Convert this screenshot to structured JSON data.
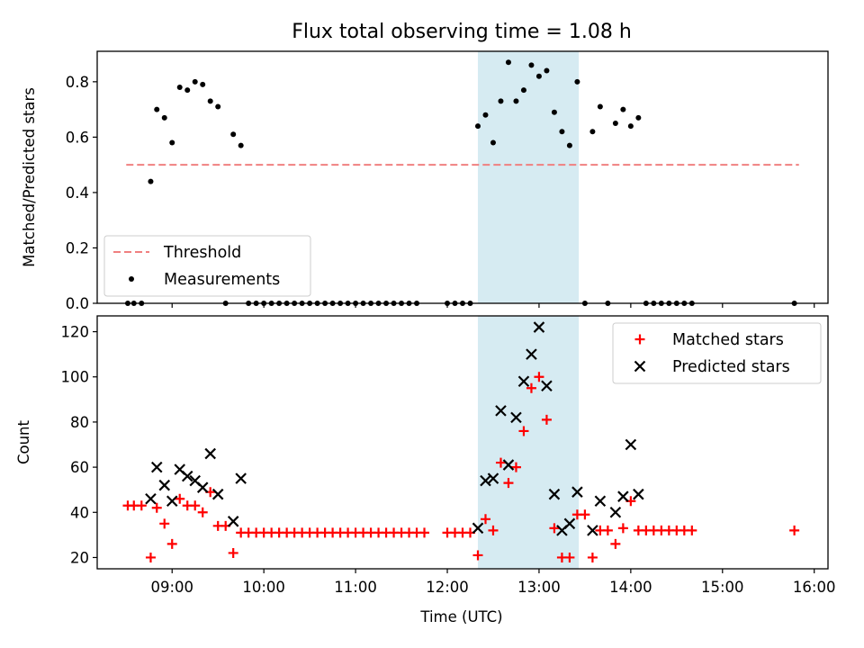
{
  "chart_data": {
    "type": "scatter",
    "title": "Flux total observing time = 1.08 h",
    "xlabel": "Time (UTC)",
    "x_ticks": [
      "09:00",
      "10:00",
      "11:00",
      "12:00",
      "13:00",
      "14:00",
      "15:00",
      "16:00"
    ],
    "xlim": [
      "08:11",
      "16:09"
    ],
    "shaded_span": {
      "start": "12:20",
      "end": "13:26",
      "color": "#add8e6"
    },
    "colors": {
      "threshold": "#f08080",
      "measurements": "#000000",
      "matched": "#ff0000",
      "predicted": "#000000",
      "span": "#add8e6"
    },
    "panels": [
      {
        "ylabel": "Matched/Predicted stars",
        "ylim": [
          0,
          0.91
        ],
        "y_ticks": [
          "0.0",
          "0.2",
          "0.4",
          "0.6",
          "0.8"
        ],
        "legend": {
          "position": "lower left",
          "entries": [
            "Threshold",
            "Measurements"
          ]
        },
        "series": [
          {
            "name": "Threshold",
            "kind": "dashed-line",
            "x": [
              "08:30",
              "15:50"
            ],
            "y": [
              0.5,
              0.5
            ]
          },
          {
            "name": "Measurements",
            "kind": "dot",
            "points": [
              [
                "08:31",
                0
              ],
              [
                "08:35",
                0
              ],
              [
                "08:40",
                0
              ],
              [
                "08:46",
                0.44
              ],
              [
                "08:50",
                0.7
              ],
              [
                "08:55",
                0.67
              ],
              [
                "09:00",
                0.58
              ],
              [
                "09:05",
                0.78
              ],
              [
                "09:10",
                0.77
              ],
              [
                "09:15",
                0.8
              ],
              [
                "09:20",
                0.79
              ],
              [
                "09:25",
                0.73
              ],
              [
                "09:30",
                0.71
              ],
              [
                "09:35",
                0
              ],
              [
                "09:40",
                0.61
              ],
              [
                "09:45",
                0.57
              ],
              [
                "09:50",
                0
              ],
              [
                "09:55",
                0
              ],
              [
                "10:00",
                0
              ],
              [
                "10:05",
                0
              ],
              [
                "10:10",
                0
              ],
              [
                "10:15",
                0
              ],
              [
                "10:20",
                0
              ],
              [
                "10:25",
                0
              ],
              [
                "10:30",
                0
              ],
              [
                "10:35",
                0
              ],
              [
                "10:40",
                0
              ],
              [
                "10:45",
                0
              ],
              [
                "10:50",
                0
              ],
              [
                "10:55",
                0
              ],
              [
                "11:00",
                0
              ],
              [
                "11:05",
                0
              ],
              [
                "11:10",
                0
              ],
              [
                "11:15",
                0
              ],
              [
                "11:20",
                0
              ],
              [
                "11:25",
                0
              ],
              [
                "11:30",
                0
              ],
              [
                "11:35",
                0
              ],
              [
                "11:40",
                0
              ],
              [
                "12:00",
                0
              ],
              [
                "12:05",
                0
              ],
              [
                "12:10",
                0
              ],
              [
                "12:15",
                0
              ],
              [
                "12:20",
                0.64
              ],
              [
                "12:25",
                0.68
              ],
              [
                "12:30",
                0.58
              ],
              [
                "12:35",
                0.73
              ],
              [
                "12:40",
                0.87
              ],
              [
                "12:45",
                0.73
              ],
              [
                "12:50",
                0.77
              ],
              [
                "12:55",
                0.86
              ],
              [
                "13:00",
                0.82
              ],
              [
                "13:05",
                0.84
              ],
              [
                "13:10",
                0.69
              ],
              [
                "13:15",
                0.62
              ],
              [
                "13:20",
                0.57
              ],
              [
                "13:25",
                0.8
              ],
              [
                "13:30",
                0
              ],
              [
                "13:35",
                0.62
              ],
              [
                "13:40",
                0.71
              ],
              [
                "13:45",
                0
              ],
              [
                "13:50",
                0.65
              ],
              [
                "13:55",
                0.7
              ],
              [
                "14:00",
                0.64
              ],
              [
                "14:05",
                0.67
              ],
              [
                "14:10",
                0
              ],
              [
                "14:15",
                0
              ],
              [
                "14:20",
                0
              ],
              [
                "14:25",
                0
              ],
              [
                "14:30",
                0
              ],
              [
                "14:35",
                0
              ],
              [
                "14:40",
                0
              ],
              [
                "15:47",
                0
              ]
            ]
          }
        ]
      },
      {
        "ylabel": "Count",
        "ylim": [
          15,
          127
        ],
        "y_ticks": [
          "20",
          "40",
          "60",
          "80",
          "100",
          "120"
        ],
        "legend": {
          "position": "upper right",
          "entries": [
            "Matched stars",
            "Predicted stars"
          ]
        },
        "series": [
          {
            "name": "Matched stars",
            "kind": "plus",
            "points": [
              [
                "08:31",
                43
              ],
              [
                "08:35",
                43
              ],
              [
                "08:40",
                43
              ],
              [
                "08:46",
                20
              ],
              [
                "08:50",
                42
              ],
              [
                "08:55",
                35
              ],
              [
                "09:00",
                26
              ],
              [
                "09:05",
                46
              ],
              [
                "09:10",
                43
              ],
              [
                "09:15",
                43
              ],
              [
                "09:20",
                40
              ],
              [
                "09:25",
                49
              ],
              [
                "09:30",
                34
              ],
              [
                "09:35",
                34
              ],
              [
                "09:40",
                22
              ],
              [
                "09:45",
                31
              ],
              [
                "09:50",
                31
              ],
              [
                "09:55",
                31
              ],
              [
                "10:00",
                31
              ],
              [
                "10:05",
                31
              ],
              [
                "10:10",
                31
              ],
              [
                "10:15",
                31
              ],
              [
                "10:20",
                31
              ],
              [
                "10:25",
                31
              ],
              [
                "10:30",
                31
              ],
              [
                "10:35",
                31
              ],
              [
                "10:40",
                31
              ],
              [
                "10:45",
                31
              ],
              [
                "10:50",
                31
              ],
              [
                "10:55",
                31
              ],
              [
                "11:00",
                31
              ],
              [
                "11:05",
                31
              ],
              [
                "11:10",
                31
              ],
              [
                "11:15",
                31
              ],
              [
                "11:20",
                31
              ],
              [
                "11:25",
                31
              ],
              [
                "11:30",
                31
              ],
              [
                "11:35",
                31
              ],
              [
                "11:40",
                31
              ],
              [
                "11:45",
                31
              ],
              [
                "12:00",
                31
              ],
              [
                "12:05",
                31
              ],
              [
                "12:10",
                31
              ],
              [
                "12:15",
                31
              ],
              [
                "12:20",
                21
              ],
              [
                "12:25",
                37
              ],
              [
                "12:30",
                32
              ],
              [
                "12:35",
                62
              ],
              [
                "12:40",
                53
              ],
              [
                "12:45",
                60
              ],
              [
                "12:50",
                76
              ],
              [
                "12:55",
                95
              ],
              [
                "13:00",
                100
              ],
              [
                "13:05",
                81
              ],
              [
                "13:10",
                33
              ],
              [
                "13:15",
                20
              ],
              [
                "13:20",
                20
              ],
              [
                "13:25",
                39
              ],
              [
                "13:30",
                39
              ],
              [
                "13:35",
                20
              ],
              [
                "13:40",
                32
              ],
              [
                "13:45",
                32
              ],
              [
                "13:50",
                26
              ],
              [
                "13:55",
                33
              ],
              [
                "14:00",
                45
              ],
              [
                "14:05",
                32
              ],
              [
                "14:10",
                32
              ],
              [
                "14:15",
                32
              ],
              [
                "14:20",
                32
              ],
              [
                "14:25",
                32
              ],
              [
                "14:30",
                32
              ],
              [
                "14:35",
                32
              ],
              [
                "14:40",
                32
              ],
              [
                "15:47",
                32
              ]
            ]
          },
          {
            "name": "Predicted stars",
            "kind": "x",
            "points": [
              [
                "08:46",
                46
              ],
              [
                "08:50",
                60
              ],
              [
                "08:55",
                52
              ],
              [
                "09:00",
                45
              ],
              [
                "09:05",
                59
              ],
              [
                "09:10",
                56
              ],
              [
                "09:15",
                54
              ],
              [
                "09:20",
                51
              ],
              [
                "09:25",
                66
              ],
              [
                "09:30",
                48
              ],
              [
                "09:40",
                36
              ],
              [
                "09:45",
                55
              ],
              [
                "12:20",
                33
              ],
              [
                "12:25",
                54
              ],
              [
                "12:30",
                55
              ],
              [
                "12:35",
                85
              ],
              [
                "12:40",
                61
              ],
              [
                "12:45",
                82
              ],
              [
                "12:50",
                98
              ],
              [
                "12:55",
                110
              ],
              [
                "13:00",
                122
              ],
              [
                "13:05",
                96
              ],
              [
                "13:10",
                48
              ],
              [
                "13:15",
                32
              ],
              [
                "13:20",
                35
              ],
              [
                "13:25",
                49
              ],
              [
                "13:35",
                32
              ],
              [
                "13:40",
                45
              ],
              [
                "13:50",
                40
              ],
              [
                "13:55",
                47
              ],
              [
                "14:00",
                70
              ],
              [
                "14:05",
                48
              ]
            ]
          }
        ]
      }
    ]
  }
}
